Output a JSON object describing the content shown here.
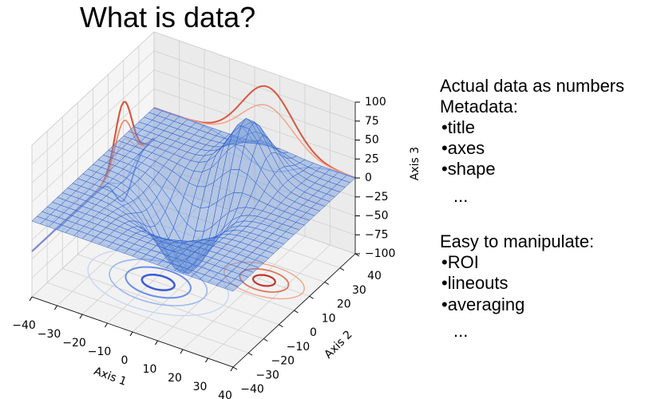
{
  "title": "What is data?",
  "notes": [
    "Actual data as numbers",
    "Metadata:",
    "•title",
    "•axes",
    "•shape",
    "...",
    "Easy to manipulate:",
    "•ROI",
    "•lineouts",
    "•averaging",
    "..."
  ],
  "chart_data": {
    "type": "surface3d",
    "xlabel": "Axis 1",
    "ylabel": "Axis 2",
    "zlabel": "Axis 3",
    "xlim": [
      -40,
      40
    ],
    "xticks": [
      {
        "value": -40,
        "label": "−40"
      },
      {
        "value": -30,
        "label": "−30"
      },
      {
        "value": -20,
        "label": "−20"
      },
      {
        "value": -10,
        "label": "−10"
      },
      0,
      10,
      20,
      30,
      40
    ],
    "ylim": [
      -40,
      40
    ],
    "yticks": [
      {
        "value": -40,
        "label": "−40"
      },
      {
        "value": -30,
        "label": "−30"
      },
      {
        "value": -20,
        "label": "−20"
      },
      {
        "value": -10,
        "label": "−10"
      },
      0,
      10,
      20,
      30,
      40
    ],
    "zlim": [
      -100,
      100
    ],
    "zticks": [
      {
        "value": -100,
        "label": "−100"
      },
      {
        "value": -75,
        "label": "−75"
      },
      {
        "value": -50,
        "label": "−50"
      },
      {
        "value": -25,
        "label": "−25"
      },
      0,
      25,
      50,
      75,
      100
    ],
    "grid": true
  }
}
